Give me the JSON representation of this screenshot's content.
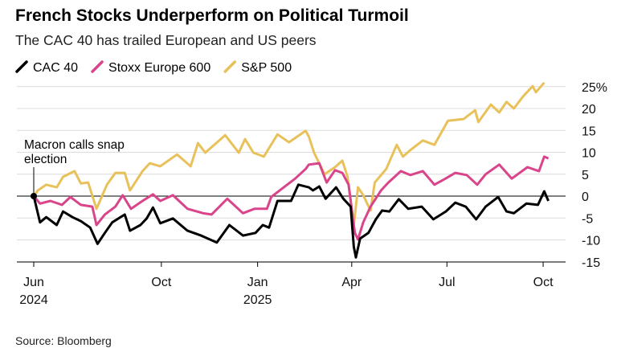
{
  "chart_data": {
    "type": "line",
    "title": "French Stocks Underperform on Political Turmoil",
    "subtitle": "The CAC 40 has trailed European and US peers",
    "x_unit": "days since 2024-06-01",
    "xlim": [
      0,
      510
    ],
    "ylim": [
      -15,
      25
    ],
    "y_ticks": [
      25,
      20,
      15,
      10,
      5,
      0,
      -5,
      -10,
      -15
    ],
    "y_tick_labels": [
      "25%",
      "20",
      "15",
      "10",
      "5",
      "0",
      "-5",
      "-10",
      "-15"
    ],
    "x_ticks": [
      {
        "day": 0,
        "label": "Jun",
        "year": "2024"
      },
      {
        "day": 122,
        "label": "Oct",
        "year": ""
      },
      {
        "day": 214,
        "label": "Jan",
        "year": "2025"
      },
      {
        "day": 304,
        "label": "Apr",
        "year": ""
      },
      {
        "day": 395,
        "label": "Jul",
        "year": ""
      },
      {
        "day": 487,
        "label": "Oct",
        "year": ""
      }
    ],
    "grid": true,
    "legend_position": "top-left",
    "annotation": {
      "day": 0,
      "value": 0,
      "text_line1": "Macron calls snap",
      "text_line2": "election"
    },
    "source": "Source: Bloomberg",
    "series": [
      {
        "name": "S&P 500",
        "color": "#e8c15a",
        "x": [
          0,
          4,
          12,
          22,
          28,
          39,
          45,
          52,
          60,
          70,
          78,
          87,
          92,
          104,
          111,
          121,
          137,
          150,
          157,
          164,
          183,
          196,
          202,
          210,
          220,
          233,
          244,
          260,
          263,
          268,
          278,
          288,
          295,
          300,
          306,
          310,
          315,
          322,
          326,
          337,
          347,
          353,
          360,
          372,
          383,
          396,
          411,
          422,
          425,
          437,
          445,
          452,
          459,
          468,
          477,
          480,
          488
        ],
        "y": [
          0,
          1.3,
          2.6,
          2,
          4.4,
          5.7,
          2.9,
          3.1,
          -2.9,
          2.6,
          5.3,
          5.3,
          1.3,
          5.7,
          7.5,
          6.8,
          9.5,
          6.8,
          12.1,
          9.9,
          13.9,
          9.9,
          13,
          9.9,
          9,
          14.1,
          12.3,
          14.9,
          13.6,
          9.9,
          5,
          6.6,
          8.1,
          4.4,
          -6.6,
          2,
          0.2,
          -3.3,
          3.1,
          6.2,
          11.7,
          9,
          10.5,
          12.7,
          11.7,
          17.2,
          17.6,
          19.6,
          16.9,
          20.9,
          19.1,
          21.5,
          20,
          22.8,
          25.1,
          23.7,
          25.9
        ]
      },
      {
        "name": "Stoxx Europe 600",
        "color": "#d9448a",
        "x": [
          0,
          6,
          16,
          27,
          35,
          45,
          56,
          60,
          68,
          78,
          85,
          93,
          104,
          114,
          121,
          133,
          147,
          162,
          170,
          185,
          200,
          211,
          223,
          227,
          239,
          250,
          260,
          263,
          273,
          280,
          288,
          295,
          301,
          307,
          310,
          315,
          322,
          332,
          339,
          351,
          360,
          372,
          383,
          393,
          403,
          414,
          424,
          432,
          445,
          457,
          472,
          483,
          488,
          492
        ],
        "y": [
          0,
          -1.7,
          -1.1,
          -2,
          -0.2,
          -2,
          -2.4,
          -6.6,
          -4.2,
          -2.4,
          0.2,
          -2.9,
          -1.1,
          0.4,
          -1.1,
          0.2,
          -2.9,
          -3.9,
          -4.2,
          -0.6,
          -3.9,
          -2.9,
          -2.9,
          -0.2,
          2,
          4,
          6.2,
          7.2,
          7.5,
          3.1,
          5.9,
          5.3,
          2.6,
          -8.4,
          -9.9,
          -6,
          -2.4,
          1.3,
          3.1,
          5.7,
          4.8,
          5.7,
          2.6,
          3.9,
          5.3,
          4.8,
          2.6,
          5,
          7.2,
          4,
          6.6,
          5.7,
          9,
          8.6
        ]
      },
      {
        "name": "CAC 40",
        "color": "#000000",
        "x": [
          0,
          6,
          12,
          22,
          28,
          37,
          45,
          54,
          61,
          68,
          75,
          87,
          92,
          102,
          108,
          114,
          121,
          133,
          147,
          160,
          175,
          187,
          200,
          212,
          219,
          225,
          233,
          246,
          253,
          263,
          267,
          273,
          279,
          289,
          296,
          303,
          306,
          308,
          312,
          320,
          327,
          333,
          340,
          349,
          358,
          371,
          382,
          394,
          403,
          413,
          423,
          432,
          444,
          452,
          459,
          471,
          482,
          488,
          492
        ],
        "y": [
          0,
          -6,
          -4.8,
          -6.6,
          -3.5,
          -4.8,
          -5.7,
          -7.2,
          -10.9,
          -8.4,
          -6,
          -4.2,
          -7.9,
          -6.6,
          -5.1,
          -2.6,
          -6.2,
          -5.1,
          -7.9,
          -9,
          -10.6,
          -6.6,
          -9,
          -8.4,
          -6.6,
          -7.2,
          -1.1,
          -1.1,
          2.6,
          2,
          1.3,
          2.2,
          -0.6,
          2,
          -0.6,
          -2.4,
          -11.6,
          -14,
          -9.7,
          -8.4,
          -5.3,
          -3.3,
          -3.5,
          -0.7,
          -2.9,
          -2.4,
          -5.3,
          -3.5,
          -1.5,
          -2.4,
          -5.3,
          -2.4,
          -0.2,
          -3.5,
          -3.9,
          -1.7,
          -2,
          1.1,
          -1.1
        ]
      }
    ]
  }
}
